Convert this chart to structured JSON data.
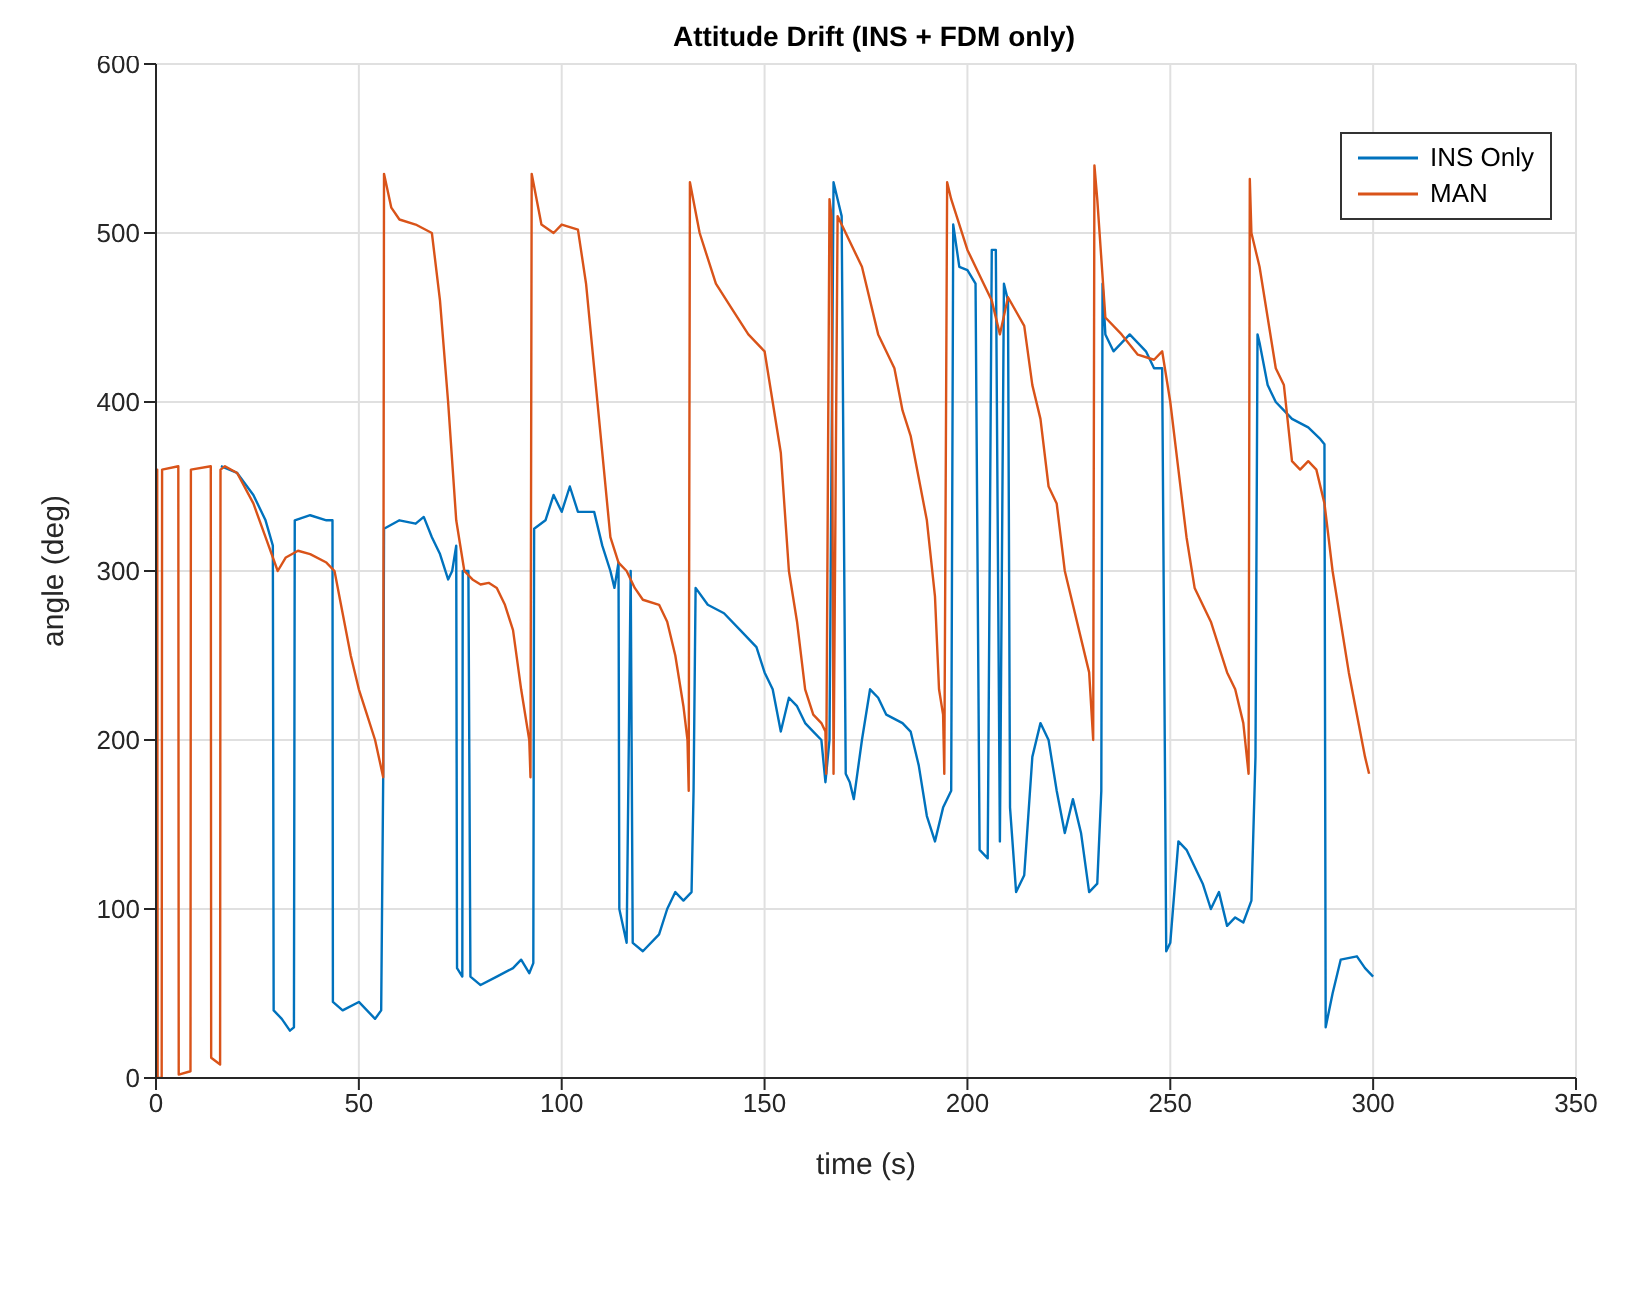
{
  "chart_data": {
    "type": "line",
    "title": "Attitude Drift (INS + FDM only)",
    "xlabel": "time (s)",
    "ylabel": "angle (deg)",
    "xlim": [
      0,
      350
    ],
    "xticks": [
      0,
      50,
      100,
      150,
      200,
      250,
      300,
      350
    ],
    "ylim": [
      0,
      600
    ],
    "yticks": [
      0,
      100,
      200,
      300,
      400,
      500,
      600
    ],
    "grid": true,
    "legend": "top right",
    "marker": "none",
    "line_style": "solid",
    "series": [
      {
        "name": "INS Only",
        "color": "#0072bd",
        "x": [
          16,
          20,
          24,
          27,
          28.8,
          29,
          31,
          33,
          34,
          34.2,
          38,
          42,
          43.5,
          43.6,
          46,
          50,
          54,
          55.5,
          56,
          56.2,
          60,
          64,
          66,
          68,
          70,
          72,
          73,
          74,
          74.2,
          75.5,
          75.6,
          77,
          77.5,
          80,
          84,
          88,
          90,
          92,
          93,
          93.2,
          96,
          98,
          100,
          102,
          104,
          108,
          110,
          112,
          113,
          114,
          114.2,
          116,
          117,
          117.5,
          120,
          124,
          126,
          128,
          130,
          132,
          132.5,
          133,
          136,
          140,
          144,
          148,
          150,
          152,
          154,
          156,
          158,
          160,
          162,
          164,
          165,
          166,
          167,
          168,
          169,
          170,
          171,
          172,
          174,
          176,
          178,
          180,
          184,
          186,
          188,
          190,
          192,
          194,
          196,
          196.5,
          198,
          200,
          202,
          203,
          205,
          206,
          207,
          208,
          209,
          210,
          210.5,
          212,
          214,
          216,
          218,
          220,
          222,
          224,
          226,
          228,
          230,
          232,
          233,
          233.3,
          234,
          236,
          240,
          244,
          246,
          248,
          249,
          250,
          252,
          254,
          256,
          258,
          260,
          262,
          264,
          266,
          268,
          270,
          271,
          271.5,
          272,
          274,
          276,
          278,
          280,
          284,
          287,
          288,
          288.3,
          290,
          292,
          296,
          298,
          300
        ],
        "values": [
          362,
          358,
          345,
          330,
          315,
          40,
          35,
          28,
          30,
          330,
          333,
          330,
          330,
          45,
          40,
          45,
          35,
          40,
          178,
          325,
          330,
          328,
          332,
          320,
          310,
          295,
          300,
          315,
          65,
          60,
          300,
          300,
          60,
          55,
          60,
          65,
          70,
          62,
          68,
          325,
          330,
          345,
          335,
          350,
          335,
          335,
          315,
          300,
          290,
          305,
          100,
          80,
          300,
          80,
          75,
          85,
          100,
          110,
          105,
          110,
          170,
          290,
          280,
          275,
          265,
          255,
          240,
          230,
          205,
          225,
          220,
          210,
          205,
          200,
          175,
          200,
          530,
          520,
          510,
          180,
          175,
          165,
          200,
          230,
          225,
          215,
          210,
          205,
          185,
          155,
          140,
          160,
          170,
          505,
          480,
          478,
          470,
          135,
          130,
          490,
          490,
          140,
          470,
          460,
          160,
          110,
          120,
          190,
          210,
          200,
          170,
          145,
          165,
          145,
          110,
          115,
          170,
          470,
          440,
          430,
          440,
          430,
          420,
          420,
          75,
          80,
          140,
          135,
          125,
          115,
          100,
          110,
          90,
          95,
          92,
          105,
          190,
          440,
          435,
          410,
          400,
          395,
          390,
          385,
          378,
          375,
          30,
          50,
          70,
          72,
          65,
          60
        ]
      },
      {
        "name": "MAN",
        "color": "#d95319",
        "x": [
          0,
          0.3,
          0.4,
          1.4,
          1.5,
          5.5,
          5.6,
          8.5,
          8.6,
          13.5,
          13.6,
          15.8,
          15.9,
          17,
          20,
          24,
          27,
          30,
          32,
          35,
          38,
          42,
          44,
          46,
          48,
          50,
          52,
          54,
          56,
          56.2,
          58,
          60,
          64,
          68,
          70,
          72,
          74,
          76,
          78,
          80,
          82,
          84,
          86,
          88,
          90,
          92,
          92.3,
          92.6,
          95,
          98,
          100,
          104,
          106,
          108,
          110,
          112,
          114,
          116,
          118,
          120,
          124,
          126,
          128,
          130,
          131,
          131.3,
          131.6,
          134,
          138,
          142,
          146,
          150,
          152,
          154,
          156,
          158,
          160,
          162,
          164,
          165,
          165.2,
          166,
          166.5,
          167,
          168,
          170,
          174,
          178,
          182,
          184,
          186,
          188,
          190,
          192,
          193,
          194,
          194.3,
          195,
          196,
          200,
          204,
          206,
          208,
          210,
          214,
          216,
          218,
          220,
          222,
          224,
          226,
          228,
          230,
          231,
          231.3,
          232,
          234,
          238,
          242,
          246,
          248,
          250,
          252,
          254,
          256,
          260,
          264,
          266,
          268,
          269.3,
          269.6,
          270,
          272,
          274,
          276,
          278,
          280,
          282,
          284,
          286,
          288,
          290,
          292,
          294,
          296,
          298,
          299
        ],
        "values": [
          360,
          360,
          0,
          0,
          360,
          362,
          2,
          4,
          360,
          362,
          12,
          8,
          360,
          362,
          358,
          340,
          320,
          300,
          308,
          312,
          310,
          305,
          300,
          275,
          250,
          230,
          215,
          200,
          178,
          535,
          515,
          508,
          505,
          500,
          460,
          400,
          330,
          300,
          295,
          292,
          293,
          290,
          280,
          265,
          230,
          200,
          178,
          535,
          505,
          500,
          505,
          502,
          470,
          420,
          370,
          320,
          305,
          300,
          290,
          283,
          280,
          270,
          250,
          220,
          200,
          170,
          530,
          500,
          470,
          455,
          440,
          430,
          400,
          370,
          300,
          270,
          230,
          215,
          210,
          205,
          180,
          520,
          510,
          180,
          510,
          500,
          480,
          440,
          420,
          395,
          380,
          355,
          330,
          285,
          230,
          215,
          180,
          530,
          520,
          490,
          470,
          460,
          440,
          462,
          445,
          410,
          390,
          350,
          340,
          300,
          280,
          260,
          240,
          200,
          540,
          520,
          450,
          440,
          428,
          425,
          430,
          400,
          360,
          320,
          290,
          270,
          240,
          230,
          210,
          180,
          532,
          500,
          480,
          450,
          420,
          410,
          365,
          360,
          365,
          360,
          340,
          300,
          270,
          240,
          215,
          190,
          180
        ]
      }
    ]
  }
}
